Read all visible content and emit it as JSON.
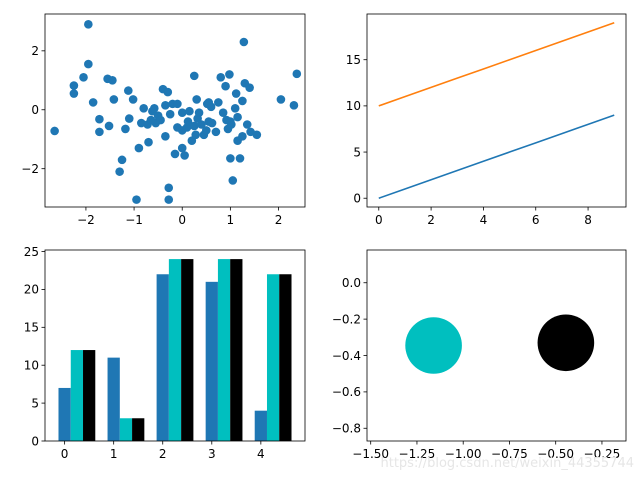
{
  "chart_data": [
    {
      "type": "scatter",
      "title": "",
      "xlabel": "",
      "ylabel": "",
      "xlim": [
        -2.85,
        2.55
      ],
      "ylim": [
        -3.3,
        3.25
      ],
      "xticks": [
        -2,
        -1,
        0,
        1,
        2
      ],
      "xtick_labels": [
        "−2",
        "−1",
        "0",
        "1",
        "2"
      ],
      "yticks": [
        -2,
        0,
        2
      ],
      "ytick_labels": [
        "−2",
        "0",
        "2"
      ],
      "color": "#1f77b4",
      "points": [
        [
          -2.65,
          -0.72
        ],
        [
          -2.25,
          0.82
        ],
        [
          -2.25,
          0.55
        ],
        [
          -2.05,
          1.1
        ],
        [
          -1.95,
          2.9
        ],
        [
          -1.95,
          1.55
        ],
        [
          -1.85,
          0.25
        ],
        [
          -1.72,
          -0.32
        ],
        [
          -1.72,
          -0.75
        ],
        [
          -1.55,
          1.05
        ],
        [
          -1.52,
          -0.55
        ],
        [
          -1.45,
          1.0
        ],
        [
          -1.42,
          0.35
        ],
        [
          -1.3,
          -2.1
        ],
        [
          -1.25,
          -1.7
        ],
        [
          -1.18,
          -0.65
        ],
        [
          -1.12,
          0.65
        ],
        [
          -1.1,
          -0.3
        ],
        [
          -1.02,
          0.35
        ],
        [
          -0.95,
          -3.05
        ],
        [
          -0.9,
          -1.3
        ],
        [
          -0.85,
          -0.45
        ],
        [
          -0.8,
          0.05
        ],
        [
          -0.72,
          -0.5
        ],
        [
          -0.7,
          -1.1
        ],
        [
          -0.62,
          -0.05
        ],
        [
          -0.58,
          0.05
        ],
        [
          -0.55,
          -0.45
        ],
        [
          -0.5,
          -0.2
        ],
        [
          -0.45,
          -0.35
        ],
        [
          -0.4,
          0.7
        ],
        [
          -0.35,
          -0.9
        ],
        [
          -0.35,
          0.15
        ],
        [
          -0.3,
          0.6
        ],
        [
          -0.28,
          -3.05
        ],
        [
          -0.28,
          -2.65
        ],
        [
          -0.25,
          -0.15
        ],
        [
          -0.2,
          0.2
        ],
        [
          -0.15,
          -1.5
        ],
        [
          -0.1,
          0.2
        ],
        [
          -0.1,
          -0.6
        ],
        [
          0.0,
          -0.1
        ],
        [
          0.0,
          -0.7
        ],
        [
          0.0,
          -1.3
        ],
        [
          0.05,
          -1.55
        ],
        [
          0.1,
          -0.6
        ],
        [
          0.12,
          -0.4
        ],
        [
          0.15,
          -0.05
        ],
        [
          0.2,
          -1.05
        ],
        [
          0.25,
          1.15
        ],
        [
          0.25,
          -0.55
        ],
        [
          0.28,
          -0.85
        ],
        [
          0.3,
          0.35
        ],
        [
          0.32,
          -0.3
        ],
        [
          0.35,
          -0.1
        ],
        [
          0.4,
          -0.5
        ],
        [
          0.45,
          -0.85
        ],
        [
          0.5,
          -0.7
        ],
        [
          0.52,
          0.2
        ],
        [
          0.55,
          0.25
        ],
        [
          0.55,
          -0.4
        ],
        [
          0.6,
          0.1
        ],
        [
          0.62,
          -0.45
        ],
        [
          0.7,
          -0.75
        ],
        [
          0.75,
          0.25
        ],
        [
          0.8,
          1.1
        ],
        [
          0.85,
          -0.1
        ],
        [
          0.9,
          0.8
        ],
        [
          0.92,
          -0.35
        ],
        [
          0.95,
          -0.65
        ],
        [
          0.98,
          1.2
        ],
        [
          1.0,
          -1.65
        ],
        [
          1.0,
          -0.4
        ],
        [
          1.02,
          -0.5
        ],
        [
          1.05,
          -2.4
        ],
        [
          1.1,
          0.05
        ],
        [
          1.12,
          0.55
        ],
        [
          1.15,
          -0.25
        ],
        [
          1.2,
          -1.65
        ],
        [
          1.25,
          0.3
        ],
        [
          1.25,
          -0.9
        ],
        [
          1.28,
          2.3
        ],
        [
          1.3,
          0.9
        ],
        [
          1.35,
          -0.5
        ],
        [
          1.4,
          0.75
        ],
        [
          1.42,
          -0.75
        ],
        [
          1.55,
          -0.85
        ],
        [
          2.05,
          0.35
        ],
        [
          2.32,
          0.15
        ],
        [
          2.38,
          1.22
        ],
        [
          1.15,
          -1.05
        ],
        [
          -0.65,
          -0.35
        ]
      ]
    },
    {
      "type": "line",
      "title": "",
      "xlabel": "",
      "ylabel": "",
      "xlim": [
        -0.45,
        9.45
      ],
      "ylim": [
        -0.95,
        19.95
      ],
      "xticks": [
        0,
        2,
        4,
        6,
        8
      ],
      "xtick_labels": [
        "0",
        "2",
        "4",
        "6",
        "8"
      ],
      "yticks": [
        0,
        5,
        10,
        15
      ],
      "ytick_labels": [
        "0",
        "5",
        "10",
        "15"
      ],
      "x": [
        0,
        1,
        2,
        3,
        4,
        5,
        6,
        7,
        8,
        9
      ],
      "series": [
        {
          "values": [
            0,
            1,
            2,
            3,
            4,
            5,
            6,
            7,
            8,
            9
          ],
          "color": "#1f77b4"
        },
        {
          "values": [
            10,
            11,
            12,
            13,
            14,
            15,
            16,
            17,
            18,
            19
          ],
          "color": "#ff7f0e"
        }
      ]
    },
    {
      "type": "bar",
      "title": "",
      "xlabel": "",
      "ylabel": "",
      "xlim": [
        -0.4,
        4.9
      ],
      "ylim": [
        0,
        25.2
      ],
      "xticks": [
        0,
        1,
        2,
        3,
        4
      ],
      "xtick_labels": [
        "0",
        "1",
        "2",
        "3",
        "4"
      ],
      "yticks": [
        0,
        5,
        10,
        15,
        20,
        25
      ],
      "ytick_labels": [
        "0",
        "5",
        "10",
        "15",
        "20",
        "25"
      ],
      "categories": [
        0,
        1,
        2,
        3,
        4
      ],
      "bar_width": 0.25,
      "series": [
        {
          "values": [
            7,
            11,
            22,
            21,
            4
          ],
          "color": "#1f77b4"
        },
        {
          "values": [
            12,
            3,
            24,
            24,
            22
          ],
          "color": "#00bfbf"
        },
        {
          "values": [
            12,
            3,
            24,
            24,
            22
          ],
          "color": "#000000"
        }
      ]
    },
    {
      "type": "scatter",
      "title": "",
      "xlabel": "",
      "ylabel": "",
      "xlim": [
        -1.52,
        -0.12
      ],
      "ylim": [
        -0.87,
        0.18
      ],
      "xticks": [
        -1.5,
        -1.25,
        -1.0,
        -0.75,
        -0.5,
        -0.25
      ],
      "xtick_labels": [
        "−1.50",
        "−1.25",
        "−1.00",
        "−0.75",
        "−0.50",
        "−0.25"
      ],
      "yticks": [
        0.0,
        -0.2,
        -0.4,
        -0.6,
        -0.8
      ],
      "ytick_labels": [
        "0.0",
        "−0.2",
        "−0.4",
        "−0.6",
        "−0.8"
      ],
      "circles": [
        {
          "cx": -1.16,
          "cy": -0.345,
          "r": 0.153,
          "color": "#00bfbf"
        },
        {
          "cx": -0.445,
          "cy": -0.33,
          "r": 0.153,
          "color": "#000000"
        }
      ]
    }
  ],
  "watermark": "https://blog.csdn.net/weixin_44355744"
}
